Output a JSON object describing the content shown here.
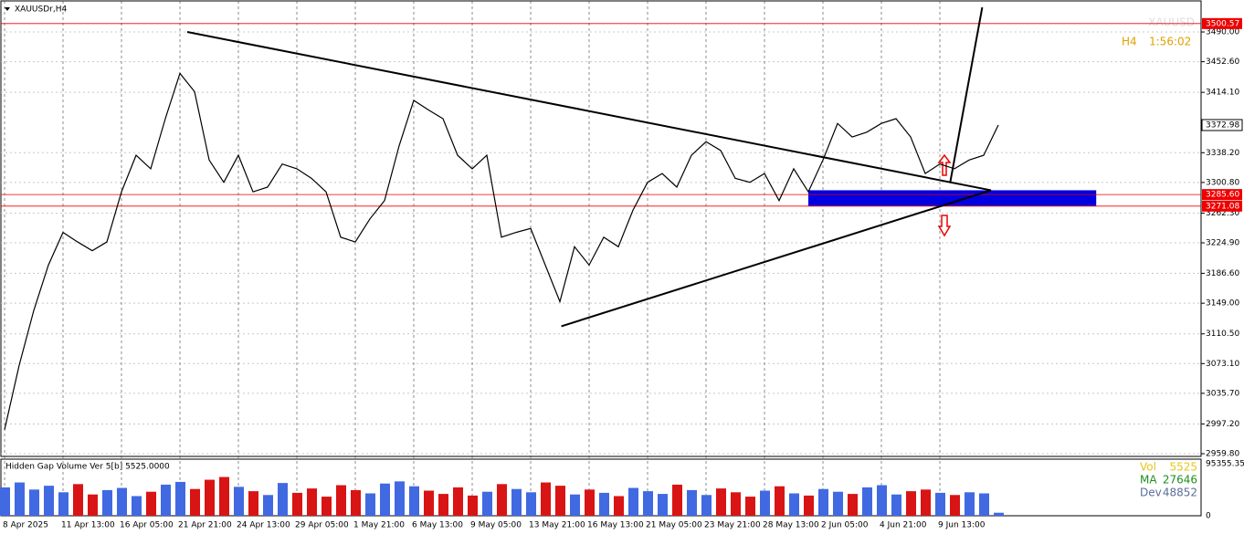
{
  "chart_data": {
    "type": "line",
    "title": "XAUUSDr,H4",
    "watermark": "XAUUSD",
    "timer": {
      "period": "H4",
      "time": "1:56:02"
    },
    "color": "#000000",
    "values": [
      2990,
      3071,
      3140,
      3197,
      3238,
      3226,
      3215,
      3226,
      3289,
      3335,
      3318,
      3381,
      3438,
      3415,
      3329,
      3301,
      3335,
      3289,
      3295,
      3324,
      3318,
      3306,
      3289,
      3232,
      3226,
      3255,
      3278,
      3347,
      3404,
      3392,
      3381,
      3335,
      3318,
      3335,
      3232,
      3238,
      3243,
      3197,
      3151,
      3220,
      3197,
      3232,
      3220,
      3266,
      3301,
      3312,
      3295,
      3335,
      3352,
      3341,
      3306,
      3301,
      3312,
      3278,
      3318,
      3289,
      3329,
      3375,
      3358,
      3364,
      3375,
      3381,
      3358,
      3312,
      3324,
      3318,
      3329,
      3335,
      3373
    ],
    "ylim": [
      2956.4,
      3527.9
    ],
    "yticks": [
      {
        "value": 3490,
        "label": "3490.00"
      },
      {
        "value": 3452.6,
        "label": "3452.60"
      },
      {
        "value": 3414.1,
        "label": "3414.10"
      },
      {
        "value": 3338.2,
        "label": "3338.20"
      },
      {
        "value": 3300.8,
        "label": "3300.80"
      },
      {
        "value": 3262.3,
        "label": "3262.30"
      },
      {
        "value": 3224.9,
        "label": "3224.90"
      },
      {
        "value": 3186.6,
        "label": "3186.60"
      },
      {
        "value": 3149,
        "label": "3149.00"
      },
      {
        "value": 3110.5,
        "label": "3110.50"
      },
      {
        "value": 3073.1,
        "label": "3073.10"
      },
      {
        "value": 3035.7,
        "label": "3035.70"
      },
      {
        "value": 2997.2,
        "label": "2997.20"
      },
      {
        "value": 2959.8,
        "label": "2959.80"
      }
    ],
    "x_labels": [
      "8 Apr 2025",
      "11 Apr 13:00",
      "16 Apr 05:00",
      "21 Apr 21:00",
      "24 Apr 13:00",
      "29 Apr 05:00",
      "1 May 21:00",
      "6 May 13:00",
      "9 May 05:00",
      "13 May 21:00",
      "16 May 13:00",
      "21 May 05:00",
      "23 May 21:00",
      "28 May 13:00",
      "2 Jun 05:00",
      "4 Jun 21:00",
      "9 Jun 13:00"
    ],
    "current_price": {
      "value": 3372.98,
      "label": "3372.98"
    },
    "levels": [
      {
        "value": 3500.57,
        "label": "3500.57"
      },
      {
        "value": 3285.6,
        "label": "3285.60"
      },
      {
        "value": 3271.08,
        "label": "3271.08"
      }
    ],
    "trendlines": [
      [
        [
          12.5,
          3490
        ],
        [
          67.5,
          3291
        ]
      ],
      [
        [
          38.1,
          3120
        ],
        [
          67.5,
          3291
        ]
      ],
      [
        [
          64.7,
          3300
        ],
        [
          66.9,
          3521
        ]
      ]
    ],
    "zone": {
      "from": 55,
      "to": 74.7,
      "low": 3271.08,
      "high": 3291,
      "color": "#0000e0"
    },
    "volume": {
      "title": "Hidden Gap Volume Ver 5[b] 5525.0000",
      "values": [
        52000,
        61000,
        48000,
        55000,
        43000,
        58000,
        39000,
        47000,
        51000,
        36000,
        44000,
        57000,
        62000,
        49000,
        66000,
        71000,
        53000,
        45000,
        38000,
        60000,
        42000,
        50000,
        35000,
        56000,
        47000,
        41000,
        59000,
        63000,
        54000,
        46000,
        40000,
        52000,
        37000,
        44000,
        58000,
        49000,
        43000,
        61000,
        55000,
        39000,
        48000,
        42000,
        36000,
        51000,
        45000,
        40000,
        57000,
        47000,
        38000,
        50000,
        43000,
        35000,
        46000,
        54000,
        41000,
        37000,
        49000,
        44000,
        40000,
        52000,
        56000,
        39000,
        45000,
        48000,
        42000,
        38000,
        43000,
        41000,
        5525
      ],
      "ylim": [
        0,
        95355.35
      ],
      "yticks": [
        {
          "value": 95355.35,
          "label": "95355.35"
        },
        0
      ],
      "legend": [
        {
          "name": "Vol",
          "value": 5525,
          "color": "#e6c619"
        },
        {
          "name": "MA",
          "value": 27646,
          "color": "#1f8f1f"
        },
        {
          "name": "Dev",
          "value": 48852,
          "color": "#5a6e9a"
        }
      ]
    }
  }
}
